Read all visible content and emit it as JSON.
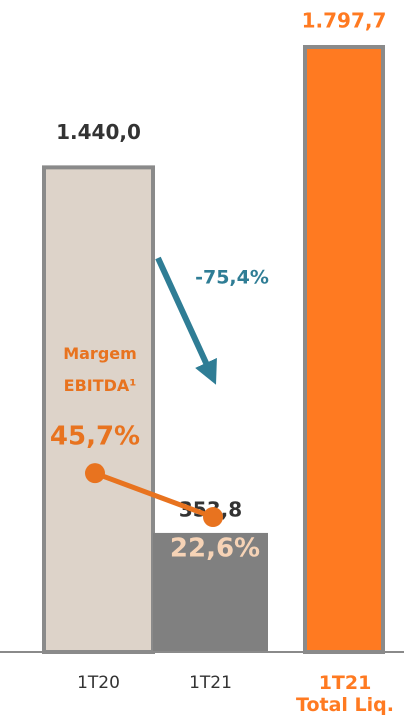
{
  "chart_data": {
    "type": "bar",
    "categories": [
      "1T20",
      "1T21",
      "1T21 Total Liq."
    ],
    "values": [
      1440.0,
      353.8,
      1797.7
    ],
    "value_labels": [
      "1.440,0",
      "353,8",
      "1.797,7"
    ],
    "colors": [
      "#ddd3c9",
      "#808080",
      "#ff7a21"
    ],
    "line_series": {
      "name": "Margem EBITDA¹",
      "values": [
        45.7,
        22.6
      ],
      "value_labels": [
        "45,7%",
        "22,6%"
      ],
      "color": "#e8731f"
    },
    "annotation": "-75,4%"
  }
}
